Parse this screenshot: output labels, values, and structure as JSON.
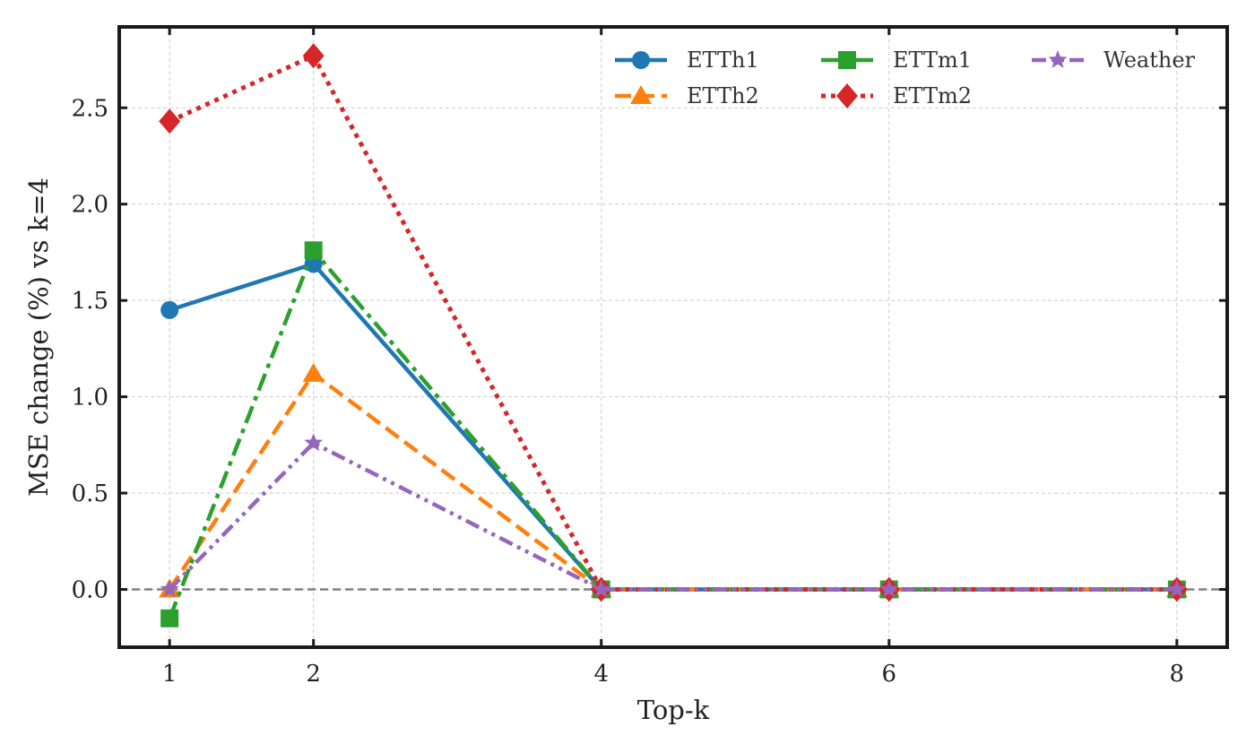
{
  "chart_data": {
    "type": "line",
    "title": "",
    "xlabel": "Top-k",
    "ylabel": "MSE change (%) vs k=4",
    "x": [
      1,
      2,
      4,
      6,
      8
    ],
    "xticks": [
      1,
      2,
      4,
      6,
      8
    ],
    "xtick_labels": [
      "1",
      "2",
      "4",
      "6",
      "8"
    ],
    "xlim": [
      0.65,
      8.35
    ],
    "yticks": [
      0.0,
      0.5,
      1.0,
      1.5,
      2.0,
      2.5
    ],
    "ytick_labels": [
      "0.0",
      "0.5",
      "1.0",
      "1.5",
      "2.0",
      "2.5"
    ],
    "ylim": [
      -0.3,
      2.92
    ],
    "grid": true,
    "reference_line": {
      "y": 0.0,
      "style": "dashed",
      "color": "#808080"
    },
    "legend_position": "top-right",
    "series": [
      {
        "name": "ETTh1",
        "values": [
          1.45,
          1.69,
          0.0,
          0.0,
          0.0
        ],
        "color": "#1f77b4",
        "linestyle": "solid",
        "marker": "circle"
      },
      {
        "name": "ETTh2",
        "values": [
          0.0,
          1.12,
          0.0,
          0.0,
          0.0
        ],
        "color": "#ff7f0e",
        "linestyle": "dashed",
        "marker": "triangle"
      },
      {
        "name": "ETTm1",
        "values": [
          -0.15,
          1.76,
          0.0,
          0.0,
          0.0
        ],
        "color": "#2ca02c",
        "linestyle": "dashdot",
        "marker": "square"
      },
      {
        "name": "ETTm2",
        "values": [
          2.43,
          2.77,
          0.0,
          0.0,
          0.0
        ],
        "color": "#d62728",
        "linestyle": "dotted",
        "marker": "diamond"
      },
      {
        "name": "Weather",
        "values": [
          0.0,
          0.76,
          0.0,
          0.0,
          0.0
        ],
        "color": "#9467bd",
        "linestyle": "dashdotdot",
        "marker": "star"
      }
    ]
  }
}
